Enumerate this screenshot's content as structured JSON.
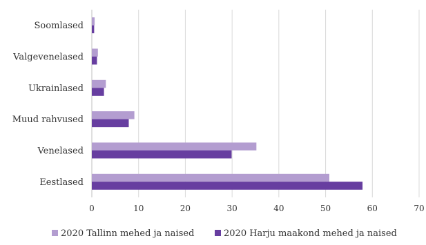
{
  "chart_data": {
    "type": "bar",
    "orientation": "horizontal",
    "categories": [
      "Soomlased",
      "Valgevenelased",
      "Ukrainlased",
      "Muud rahvused",
      "Venelased",
      "Eestlased"
    ],
    "series": [
      {
        "name": "2020 Tallinn mehed ja naised",
        "color": "#b39dd0",
        "values": [
          0.6,
          1.3,
          3.0,
          9.1,
          35.2,
          50.8
        ]
      },
      {
        "name": "2020 Harju maakond mehed ja naised",
        "color": "#673ea0",
        "values": [
          0.5,
          1.1,
          2.6,
          7.9,
          29.9,
          57.9
        ]
      }
    ],
    "xticks": [
      "0",
      "10",
      "20",
      "30",
      "40",
      "50",
      "60",
      "70"
    ],
    "xlim": [
      0,
      70
    ],
    "grid": true,
    "legend": "bottom"
  }
}
